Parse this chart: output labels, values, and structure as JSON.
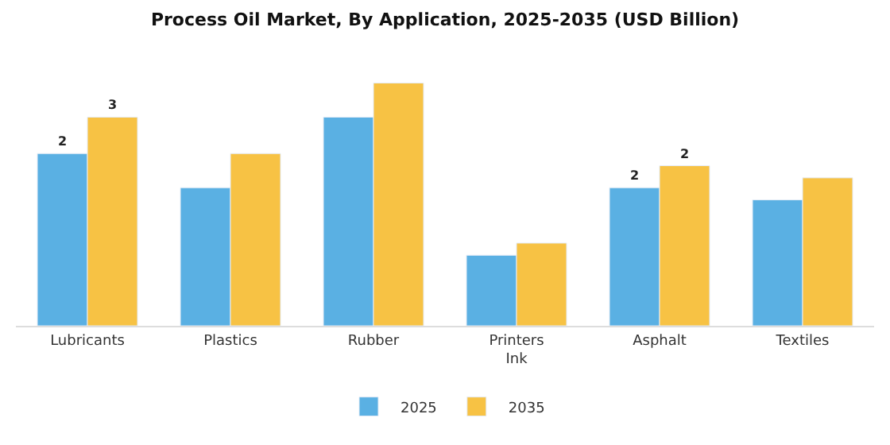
{
  "chart_data": {
    "type": "bar",
    "title": "Process Oil Market, By Application, 2025-2035 (USD Billion)",
    "categories": [
      "Lubricants",
      "Plastics",
      "Rubber",
      "Printers\nInk",
      "Asphalt",
      "Textiles"
    ],
    "series": [
      {
        "name": "2025",
        "color": "#5ab0e3",
        "values": [
          2.27,
          1.82,
          2.75,
          0.93,
          1.82,
          1.66
        ],
        "value_labels": [
          "2",
          null,
          null,
          null,
          "2",
          null
        ]
      },
      {
        "name": "2035",
        "color": "#f7c244",
        "values": [
          2.75,
          2.27,
          3.2,
          1.09,
          2.11,
          1.95
        ],
        "value_labels": [
          "3",
          null,
          null,
          null,
          "2",
          null
        ]
      }
    ],
    "legend": "bottom"
  }
}
